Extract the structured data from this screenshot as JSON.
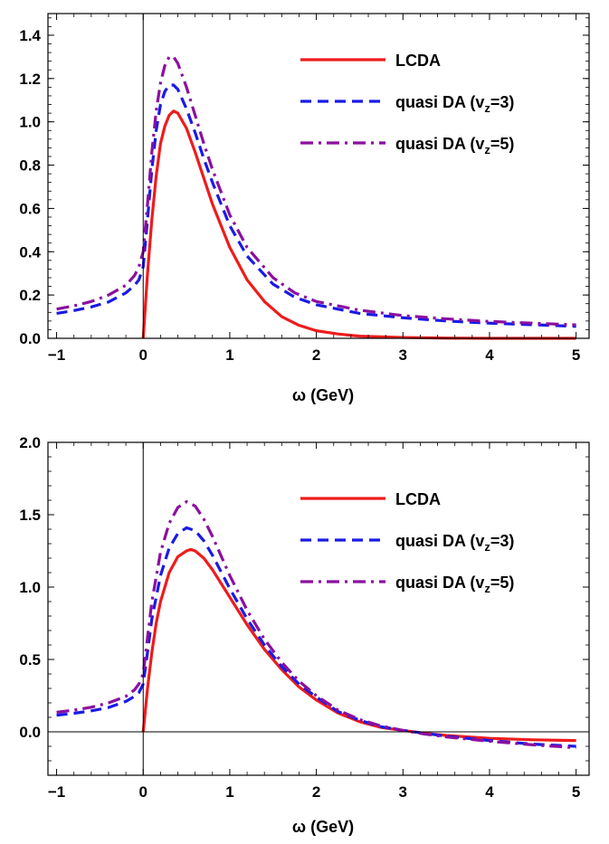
{
  "chart_data": [
    {
      "type": "line",
      "title": "",
      "xlabel": "ω (GeV)",
      "ylabel": "",
      "xlim": [
        -1.1,
        5.15
      ],
      "ylim": [
        0,
        1.5
      ],
      "x_ticks": [
        -1,
        0,
        1,
        2,
        3,
        4,
        5
      ],
      "x_tick_labels": [
        "−1",
        "0",
        "1",
        "2",
        "3",
        "4",
        "5"
      ],
      "y_ticks": [
        0.0,
        0.2,
        0.4,
        0.6,
        0.8,
        1.0,
        1.2,
        1.4
      ],
      "y_tick_labels": [
        "0.0",
        "0.2",
        "0.4",
        "0.6",
        "0.8",
        "1.0",
        "1.2",
        "1.4"
      ],
      "grid": false,
      "legend_position": "top-right",
      "series": [
        {
          "name": "LCDA",
          "color": "#ee1c1c",
          "dash": "solid",
          "x": [
            0,
            0.05,
            0.1,
            0.15,
            0.2,
            0.25,
            0.3,
            0.35,
            0.4,
            0.5,
            0.6,
            0.7,
            0.8,
            1.0,
            1.2,
            1.4,
            1.6,
            1.8,
            2.0,
            2.25,
            2.5,
            3.0,
            3.5,
            4.0,
            5.0
          ],
          "y": [
            0,
            0.3,
            0.55,
            0.75,
            0.9,
            0.98,
            1.03,
            1.05,
            1.04,
            0.97,
            0.86,
            0.74,
            0.62,
            0.42,
            0.27,
            0.17,
            0.1,
            0.06,
            0.035,
            0.02,
            0.01,
            0.004,
            0.001,
            0.0,
            0.0
          ]
        },
        {
          "name": "quasi DA (v_z=3)",
          "color": "#1a1ae6",
          "dash": "dashed",
          "x": [
            -1,
            -0.8,
            -0.6,
            -0.4,
            -0.2,
            -0.1,
            -0.05,
            0,
            0.05,
            0.1,
            0.15,
            0.2,
            0.25,
            0.3,
            0.35,
            0.4,
            0.5,
            0.6,
            0.7,
            0.8,
            1.0,
            1.2,
            1.5,
            1.75,
            2.0,
            2.5,
            3.0,
            3.5,
            4.0,
            4.5,
            5.0
          ],
          "y": [
            0.115,
            0.128,
            0.145,
            0.168,
            0.21,
            0.245,
            0.27,
            0.33,
            0.55,
            0.78,
            0.96,
            1.08,
            1.14,
            1.17,
            1.17,
            1.15,
            1.06,
            0.95,
            0.83,
            0.72,
            0.52,
            0.38,
            0.25,
            0.19,
            0.155,
            0.115,
            0.095,
            0.08,
            0.07,
            0.063,
            0.055
          ]
        },
        {
          "name": "quasi DA (v_z=5)",
          "color": "#8b0fa0",
          "dash": "dashdot",
          "x": [
            -1,
            -0.8,
            -0.6,
            -0.4,
            -0.2,
            -0.1,
            -0.05,
            0,
            0.05,
            0.1,
            0.15,
            0.2,
            0.25,
            0.3,
            0.35,
            0.4,
            0.5,
            0.6,
            0.7,
            0.8,
            1.0,
            1.2,
            1.5,
            1.75,
            2.0,
            2.5,
            3.0,
            3.5,
            4.0,
            4.5,
            5.0
          ],
          "y": [
            0.135,
            0.15,
            0.17,
            0.2,
            0.245,
            0.29,
            0.33,
            0.4,
            0.62,
            0.86,
            1.05,
            1.18,
            1.26,
            1.3,
            1.3,
            1.27,
            1.16,
            1.03,
            0.9,
            0.78,
            0.57,
            0.42,
            0.28,
            0.21,
            0.17,
            0.13,
            0.105,
            0.09,
            0.078,
            0.07,
            0.062
          ]
        }
      ]
    },
    {
      "type": "line",
      "title": "",
      "xlabel": "ω (GeV)",
      "ylabel": "",
      "xlim": [
        -1.1,
        5.15
      ],
      "ylim": [
        -0.3,
        2.0
      ],
      "x_ticks": [
        -1,
        0,
        1,
        2,
        3,
        4,
        5
      ],
      "x_tick_labels": [
        "−1",
        "0",
        "1",
        "2",
        "3",
        "4",
        "5"
      ],
      "y_ticks": [
        0.0,
        0.5,
        1.0,
        1.5,
        2.0
      ],
      "y_tick_labels": [
        "0.0",
        "0.5",
        "1.0",
        "1.5",
        "2.0"
      ],
      "grid": false,
      "legend_position": "top-right",
      "series": [
        {
          "name": "LCDA",
          "color": "#ee1c1c",
          "dash": "solid",
          "x": [
            0,
            0.05,
            0.1,
            0.15,
            0.2,
            0.3,
            0.4,
            0.5,
            0.55,
            0.6,
            0.7,
            0.8,
            1.0,
            1.2,
            1.4,
            1.6,
            1.8,
            2.0,
            2.25,
            2.5,
            2.75,
            3.0,
            3.25,
            3.5,
            4.0,
            4.5,
            5.0
          ],
          "y": [
            0,
            0.3,
            0.55,
            0.75,
            0.9,
            1.1,
            1.21,
            1.25,
            1.26,
            1.25,
            1.2,
            1.12,
            0.93,
            0.74,
            0.57,
            0.43,
            0.31,
            0.22,
            0.13,
            0.07,
            0.03,
            0.01,
            -0.01,
            -0.025,
            -0.045,
            -0.055,
            -0.06
          ]
        },
        {
          "name": "quasi DA (v_z=3)",
          "color": "#1a1ae6",
          "dash": "dashed",
          "x": [
            -1,
            -0.8,
            -0.6,
            -0.4,
            -0.2,
            -0.1,
            -0.05,
            0,
            0.05,
            0.1,
            0.2,
            0.3,
            0.4,
            0.5,
            0.6,
            0.7,
            0.8,
            1.0,
            1.2,
            1.4,
            1.6,
            1.8,
            2.0,
            2.25,
            2.5,
            2.75,
            3.0,
            3.25,
            3.5,
            4.0,
            4.5,
            5.0
          ],
          "y": [
            0.115,
            0.128,
            0.145,
            0.168,
            0.21,
            0.245,
            0.27,
            0.33,
            0.55,
            0.78,
            1.08,
            1.27,
            1.37,
            1.41,
            1.39,
            1.32,
            1.22,
            0.99,
            0.78,
            0.6,
            0.45,
            0.33,
            0.24,
            0.14,
            0.08,
            0.035,
            0.01,
            -0.01,
            -0.03,
            -0.06,
            -0.085,
            -0.1
          ]
        },
        {
          "name": "quasi DA (v_z=5)",
          "color": "#8b0fa0",
          "dash": "dashdot",
          "x": [
            -1,
            -0.8,
            -0.6,
            -0.4,
            -0.2,
            -0.1,
            -0.05,
            0,
            0.05,
            0.1,
            0.2,
            0.3,
            0.4,
            0.5,
            0.6,
            0.7,
            0.8,
            1.0,
            1.2,
            1.4,
            1.6,
            1.8,
            2.0,
            2.25,
            2.5,
            2.75,
            3.0,
            3.25,
            3.5,
            4.0,
            4.5,
            5.0
          ],
          "y": [
            0.135,
            0.15,
            0.17,
            0.2,
            0.245,
            0.29,
            0.33,
            0.4,
            0.65,
            0.9,
            1.24,
            1.44,
            1.55,
            1.59,
            1.56,
            1.47,
            1.35,
            1.08,
            0.84,
            0.64,
            0.48,
            0.35,
            0.25,
            0.15,
            0.085,
            0.04,
            0.01,
            -0.015,
            -0.035,
            -0.065,
            -0.09,
            -0.11
          ]
        }
      ]
    }
  ]
}
